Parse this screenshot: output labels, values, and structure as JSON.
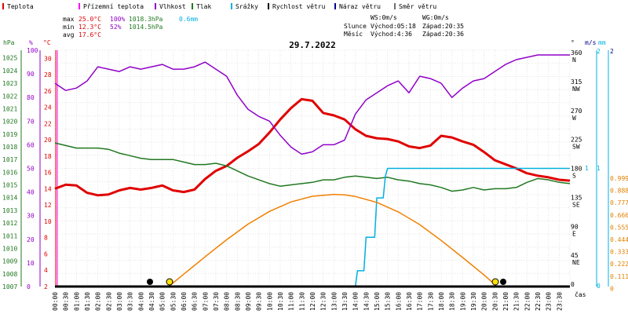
{
  "chart_data": {
    "type": "line",
    "title": "29.7.2022",
    "legend": [
      {
        "label": "Teplota",
        "color": "#e00000"
      },
      {
        "label": "Přízemní teplota",
        "color": "#ff00ff"
      },
      {
        "label": "Vlhkost",
        "color": "#9000c8"
      },
      {
        "label": "Tlak",
        "color": "#207820"
      },
      {
        "label": "Srážky",
        "color": "#00b0e0"
      },
      {
        "label": "Rychlost větru",
        "color": "#000000"
      },
      {
        "label": "Náraz větru",
        "color": "#000090"
      },
      {
        "label": "Směr větru",
        "color": "#707070"
      }
    ],
    "stats": {
      "max_label": "max",
      "max_temp": "25.0°C",
      "max_hum": "100%",
      "max_press": "1018.3hPa",
      "rain": "0.6mm",
      "min_label": "min",
      "min_temp": "12.3°C",
      "min_hum": "52%",
      "min_press": "1014.5hPa",
      "avg_label": "avg",
      "avg_temp": "17.6°C"
    },
    "wind": {
      "ws": "WS:0m/s",
      "wg": "WG:0m/s"
    },
    "sun": {
      "label": "Slunce",
      "rise": "Východ:05:18",
      "set": "Západ:20:35"
    },
    "moon": {
      "label": "Měsíc",
      "rise": "Východ:4:36",
      "set": "Západ:20:36"
    },
    "axis_units": {
      "hpa": "hPa",
      "pct": "%",
      "degc": "°C",
      "deg": "°",
      "ms": "m/s",
      "mm": "mm",
      "time": "čas"
    },
    "x_labels": [
      "00:00",
      "00:30",
      "01:00",
      "01:30",
      "02:00",
      "02:30",
      "03:00",
      "03:30",
      "04:00",
      "04:30",
      "05:00",
      "05:30",
      "06:00",
      "06:30",
      "07:00",
      "07:30",
      "08:00",
      "08:30",
      "09:00",
      "09:30",
      "10:00",
      "10:30",
      "11:00",
      "11:30",
      "12:00",
      "12:30",
      "13:00",
      "13:30",
      "14:00",
      "14:30",
      "15:00",
      "15:30",
      "16:00",
      "16:30",
      "17:00",
      "17:30",
      "18:00",
      "18:30",
      "19:00",
      "19:30",
      "20:00",
      "20:30",
      "21:00",
      "21:30",
      "22:00",
      "22:30",
      "23:00",
      "23:30"
    ],
    "y_axes": {
      "pressure_hpa": [
        "1025",
        "1024",
        "1023",
        "1022",
        "1021",
        "1020",
        "1019",
        "1018",
        "1017",
        "1016",
        "1015",
        "1014",
        "1013",
        "1012",
        "1011",
        "1010",
        "1009",
        "1008",
        "1007"
      ],
      "humidity_pct": [
        "100",
        "90",
        "80",
        "70",
        "60",
        "50",
        "40",
        "30",
        "20",
        "10",
        "0"
      ],
      "temp_c": [
        "30",
        "28",
        "26",
        "24",
        "22",
        "20",
        "18",
        "16",
        "14",
        "12",
        "10",
        "8",
        "6",
        "4",
        "2"
      ],
      "direction_deg": [
        [
          "360",
          "N"
        ],
        [
          "315",
          "NW"
        ],
        [
          "270",
          "W"
        ],
        [
          "225",
          "SW"
        ],
        [
          "180",
          "S"
        ],
        [
          "135",
          "SE"
        ],
        [
          "90",
          "E"
        ],
        [
          "45",
          "NE"
        ],
        [
          "0",
          ""
        ]
      ],
      "wind_ms": [
        "2",
        "1",
        "0"
      ],
      "rain_mm": [
        "2",
        "1",
        "0.999",
        "0.888",
        "0.777",
        "0.666",
        "0.555",
        "0.444",
        "0.333",
        "0.222",
        "0.111",
        "0"
      ]
    },
    "ranges": {
      "temp_c": [
        2,
        31
      ],
      "humidity_pct": [
        0,
        100
      ],
      "pressure_hpa": [
        1007,
        1025.6
      ],
      "rain_mm": [
        0,
        1
      ],
      "hours": [
        0,
        24
      ]
    },
    "series": [
      {
        "name": "Teplota",
        "unit": "°C",
        "color": "#e00000",
        "points": [
          [
            0,
            14
          ],
          [
            0.5,
            14.5
          ],
          [
            1,
            14.4
          ],
          [
            1.5,
            13.5
          ],
          [
            2,
            13.2
          ],
          [
            2.5,
            13.3
          ],
          [
            3,
            13.8
          ],
          [
            3.5,
            14.1
          ],
          [
            4,
            13.9
          ],
          [
            4.5,
            14.1
          ],
          [
            5,
            14.4
          ],
          [
            5.5,
            13.8
          ],
          [
            6,
            13.6
          ],
          [
            6.5,
            13.9
          ],
          [
            7,
            15.2
          ],
          [
            7.5,
            16.2
          ],
          [
            8,
            16.8
          ],
          [
            8.5,
            17.8
          ],
          [
            9,
            18.6
          ],
          [
            9.5,
            19.5
          ],
          [
            10,
            20.9
          ],
          [
            10.5,
            22.5
          ],
          [
            11,
            23.9
          ],
          [
            11.5,
            25
          ],
          [
            12,
            24.8
          ],
          [
            12.5,
            23.3
          ],
          [
            13,
            23
          ],
          [
            13.5,
            22.5
          ],
          [
            14,
            21.3
          ],
          [
            14.5,
            20.5
          ],
          [
            15,
            20.2
          ],
          [
            15.5,
            20.1
          ],
          [
            16,
            19.8
          ],
          [
            16.5,
            19.2
          ],
          [
            17,
            19
          ],
          [
            17.5,
            19.3
          ],
          [
            18,
            20.5
          ],
          [
            18.5,
            20.3
          ],
          [
            19,
            19.8
          ],
          [
            19.5,
            19.4
          ],
          [
            20,
            18.5
          ],
          [
            20.5,
            17.5
          ],
          [
            21,
            17
          ],
          [
            21.5,
            16.5
          ],
          [
            22,
            15.9
          ],
          [
            22.5,
            15.6
          ],
          [
            23,
            15.4
          ],
          [
            23.5,
            15.1
          ],
          [
            24,
            15
          ]
        ]
      },
      {
        "name": "Vlhkost",
        "unit": "%",
        "color": "#9000c8",
        "points": [
          [
            0,
            86
          ],
          [
            0.5,
            83
          ],
          [
            1,
            84
          ],
          [
            1.5,
            87
          ],
          [
            2,
            93
          ],
          [
            2.5,
            92
          ],
          [
            3,
            91
          ],
          [
            3.5,
            93
          ],
          [
            4,
            92
          ],
          [
            4.5,
            93
          ],
          [
            5,
            94
          ],
          [
            5.5,
            92
          ],
          [
            6,
            92
          ],
          [
            6.5,
            93
          ],
          [
            7,
            95
          ],
          [
            7.5,
            92
          ],
          [
            8,
            89
          ],
          [
            8.5,
            81
          ],
          [
            9,
            75
          ],
          [
            9.5,
            72
          ],
          [
            10,
            70
          ],
          [
            10.5,
            64
          ],
          [
            11,
            59
          ],
          [
            11.5,
            56
          ],
          [
            12,
            57
          ],
          [
            12.5,
            60
          ],
          [
            13,
            60
          ],
          [
            13.5,
            62
          ],
          [
            14,
            73
          ],
          [
            14.5,
            79
          ],
          [
            15,
            82
          ],
          [
            15.5,
            85
          ],
          [
            16,
            87
          ],
          [
            16.5,
            82
          ],
          [
            17,
            89
          ],
          [
            17.5,
            88
          ],
          [
            18,
            86
          ],
          [
            18.5,
            80
          ],
          [
            19,
            84
          ],
          [
            19.5,
            87
          ],
          [
            20,
            88
          ],
          [
            20.5,
            91
          ],
          [
            21,
            94
          ],
          [
            21.5,
            96
          ],
          [
            22,
            97
          ],
          [
            22.5,
            98
          ],
          [
            23,
            98
          ],
          [
            23.5,
            98
          ],
          [
            24,
            98
          ]
        ]
      },
      {
        "name": "Tlak",
        "unit": "hPa",
        "color": "#207820",
        "points": [
          [
            0,
            1018.3
          ],
          [
            0.5,
            1018.1
          ],
          [
            1,
            1017.9
          ],
          [
            1.5,
            1017.9
          ],
          [
            2,
            1017.9
          ],
          [
            2.5,
            1017.8
          ],
          [
            3,
            1017.5
          ],
          [
            3.5,
            1017.3
          ],
          [
            4,
            1017.1
          ],
          [
            4.5,
            1017.0
          ],
          [
            5,
            1017.0
          ],
          [
            5.5,
            1017.0
          ],
          [
            6,
            1016.8
          ],
          [
            6.5,
            1016.6
          ],
          [
            7,
            1016.6
          ],
          [
            7.5,
            1016.7
          ],
          [
            8,
            1016.5
          ],
          [
            8.5,
            1016.1
          ],
          [
            9,
            1015.7
          ],
          [
            9.5,
            1015.4
          ],
          [
            10,
            1015.1
          ],
          [
            10.5,
            1014.9
          ],
          [
            11,
            1015.0
          ],
          [
            11.5,
            1015.1
          ],
          [
            12,
            1015.2
          ],
          [
            12.5,
            1015.4
          ],
          [
            13,
            1015.4
          ],
          [
            13.5,
            1015.6
          ],
          [
            14,
            1015.7
          ],
          [
            14.5,
            1015.6
          ],
          [
            15,
            1015.5
          ],
          [
            15.5,
            1015.6
          ],
          [
            16,
            1015.4
          ],
          [
            16.5,
            1015.3
          ],
          [
            17,
            1015.1
          ],
          [
            17.5,
            1015.0
          ],
          [
            18,
            1014.8
          ],
          [
            18.5,
            1014.5
          ],
          [
            19,
            1014.6
          ],
          [
            19.5,
            1014.8
          ],
          [
            20,
            1014.6
          ],
          [
            20.5,
            1014.7
          ],
          [
            21,
            1014.7
          ],
          [
            21.5,
            1014.8
          ],
          [
            22,
            1015.2
          ],
          [
            22.5,
            1015.5
          ],
          [
            23,
            1015.4
          ],
          [
            23.5,
            1015.2
          ],
          [
            24,
            1015.1
          ]
        ]
      },
      {
        "name": "Srážky",
        "unit": "mm",
        "color": "#00b0e0",
        "points": [
          [
            0,
            0
          ],
          [
            14.0,
            0
          ],
          [
            14.1,
            0.08
          ],
          [
            14.4,
            0.08
          ],
          [
            14.5,
            0.25
          ],
          [
            14.9,
            0.25
          ],
          [
            15.0,
            0.45
          ],
          [
            15.3,
            0.45
          ],
          [
            15.4,
            0.56
          ],
          [
            15.5,
            0.6
          ],
          [
            24,
            0.6
          ]
        ]
      },
      {
        "name": "Výška slunce",
        "unit": "",
        "color": "#f08000",
        "points": [
          [
            5.3,
            0
          ],
          [
            6,
            0.052
          ],
          [
            7,
            0.126
          ],
          [
            8,
            0.198
          ],
          [
            9,
            0.264
          ],
          [
            10,
            0.318
          ],
          [
            11,
            0.358
          ],
          [
            12,
            0.382
          ],
          [
            13,
            0.39
          ],
          [
            13.5,
            0.388
          ],
          [
            14,
            0.381
          ],
          [
            15,
            0.356
          ],
          [
            16,
            0.316
          ],
          [
            17,
            0.262
          ],
          [
            18,
            0.195
          ],
          [
            19,
            0.123
          ],
          [
            20,
            0.049
          ],
          [
            20.6,
            0
          ]
        ]
      }
    ]
  }
}
